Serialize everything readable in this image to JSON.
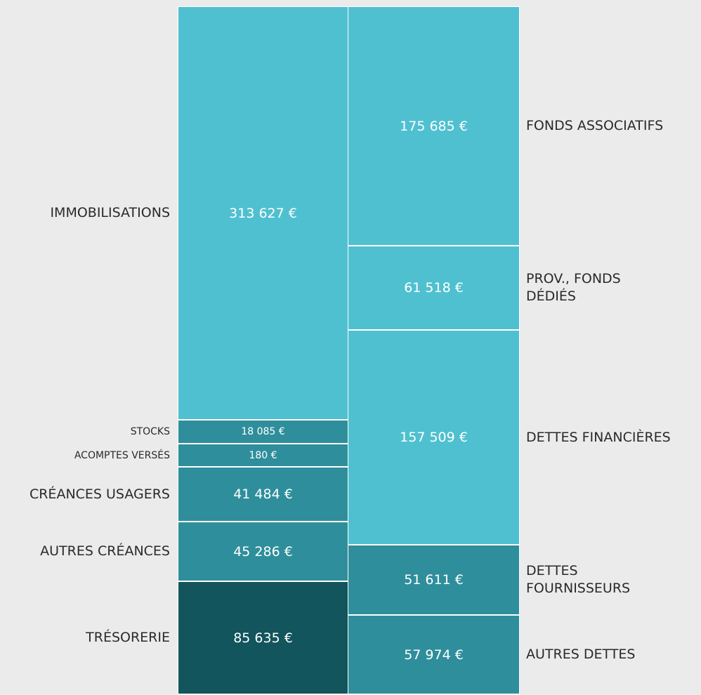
{
  "chart_data": {
    "type": "balance",
    "columns": [
      {
        "segments": [
          {
            "name": "IMMOBILISATIONS",
            "value": 313627,
            "value_label": "313 627 €",
            "color": "#4fc0d0"
          },
          {
            "name": "STOCKS",
            "value": 18085,
            "value_label": "18 085 €",
            "color": "#2f8e9b",
            "small": true
          },
          {
            "name": "ACOMPTES VERSÉS",
            "value": 180,
            "value_label": "180 €",
            "color": "#2f8e9b",
            "small": true
          },
          {
            "name": "CRÉANCES USAGERS",
            "value": 41484,
            "value_label": "41 484 €",
            "color": "#2f8e9b"
          },
          {
            "name": "AUTRES CRÉANCES",
            "value": 45286,
            "value_label": "45 286 €",
            "color": "#2f8e9b"
          },
          {
            "name": "TRÉSORERIE",
            "value": 85635,
            "value_label": "85 635 €",
            "color": "#12555c"
          }
        ]
      },
      {
        "segments": [
          {
            "name": "FONDS ASSOCIATIFS",
            "value": 175685,
            "value_label": "175 685 €",
            "color": "#4fc0d0"
          },
          {
            "name": "PROV., FONDS\nDÉDIÉS",
            "value": 61518,
            "value_label": "61 518 €",
            "color": "#4fc0d0"
          },
          {
            "name": "DETTES FINANCIÈRES",
            "value": 157509,
            "value_label": "157 509 €",
            "color": "#4fc0d0"
          },
          {
            "name": "DETTES\nFOURNISSEURS",
            "value": 51611,
            "value_label": "51 611 €",
            "color": "#2f8e9b"
          },
          {
            "name": "AUTRES DETTES",
            "value": 57974,
            "value_label": "57 974 €",
            "color": "#2f8e9b"
          }
        ]
      }
    ]
  }
}
